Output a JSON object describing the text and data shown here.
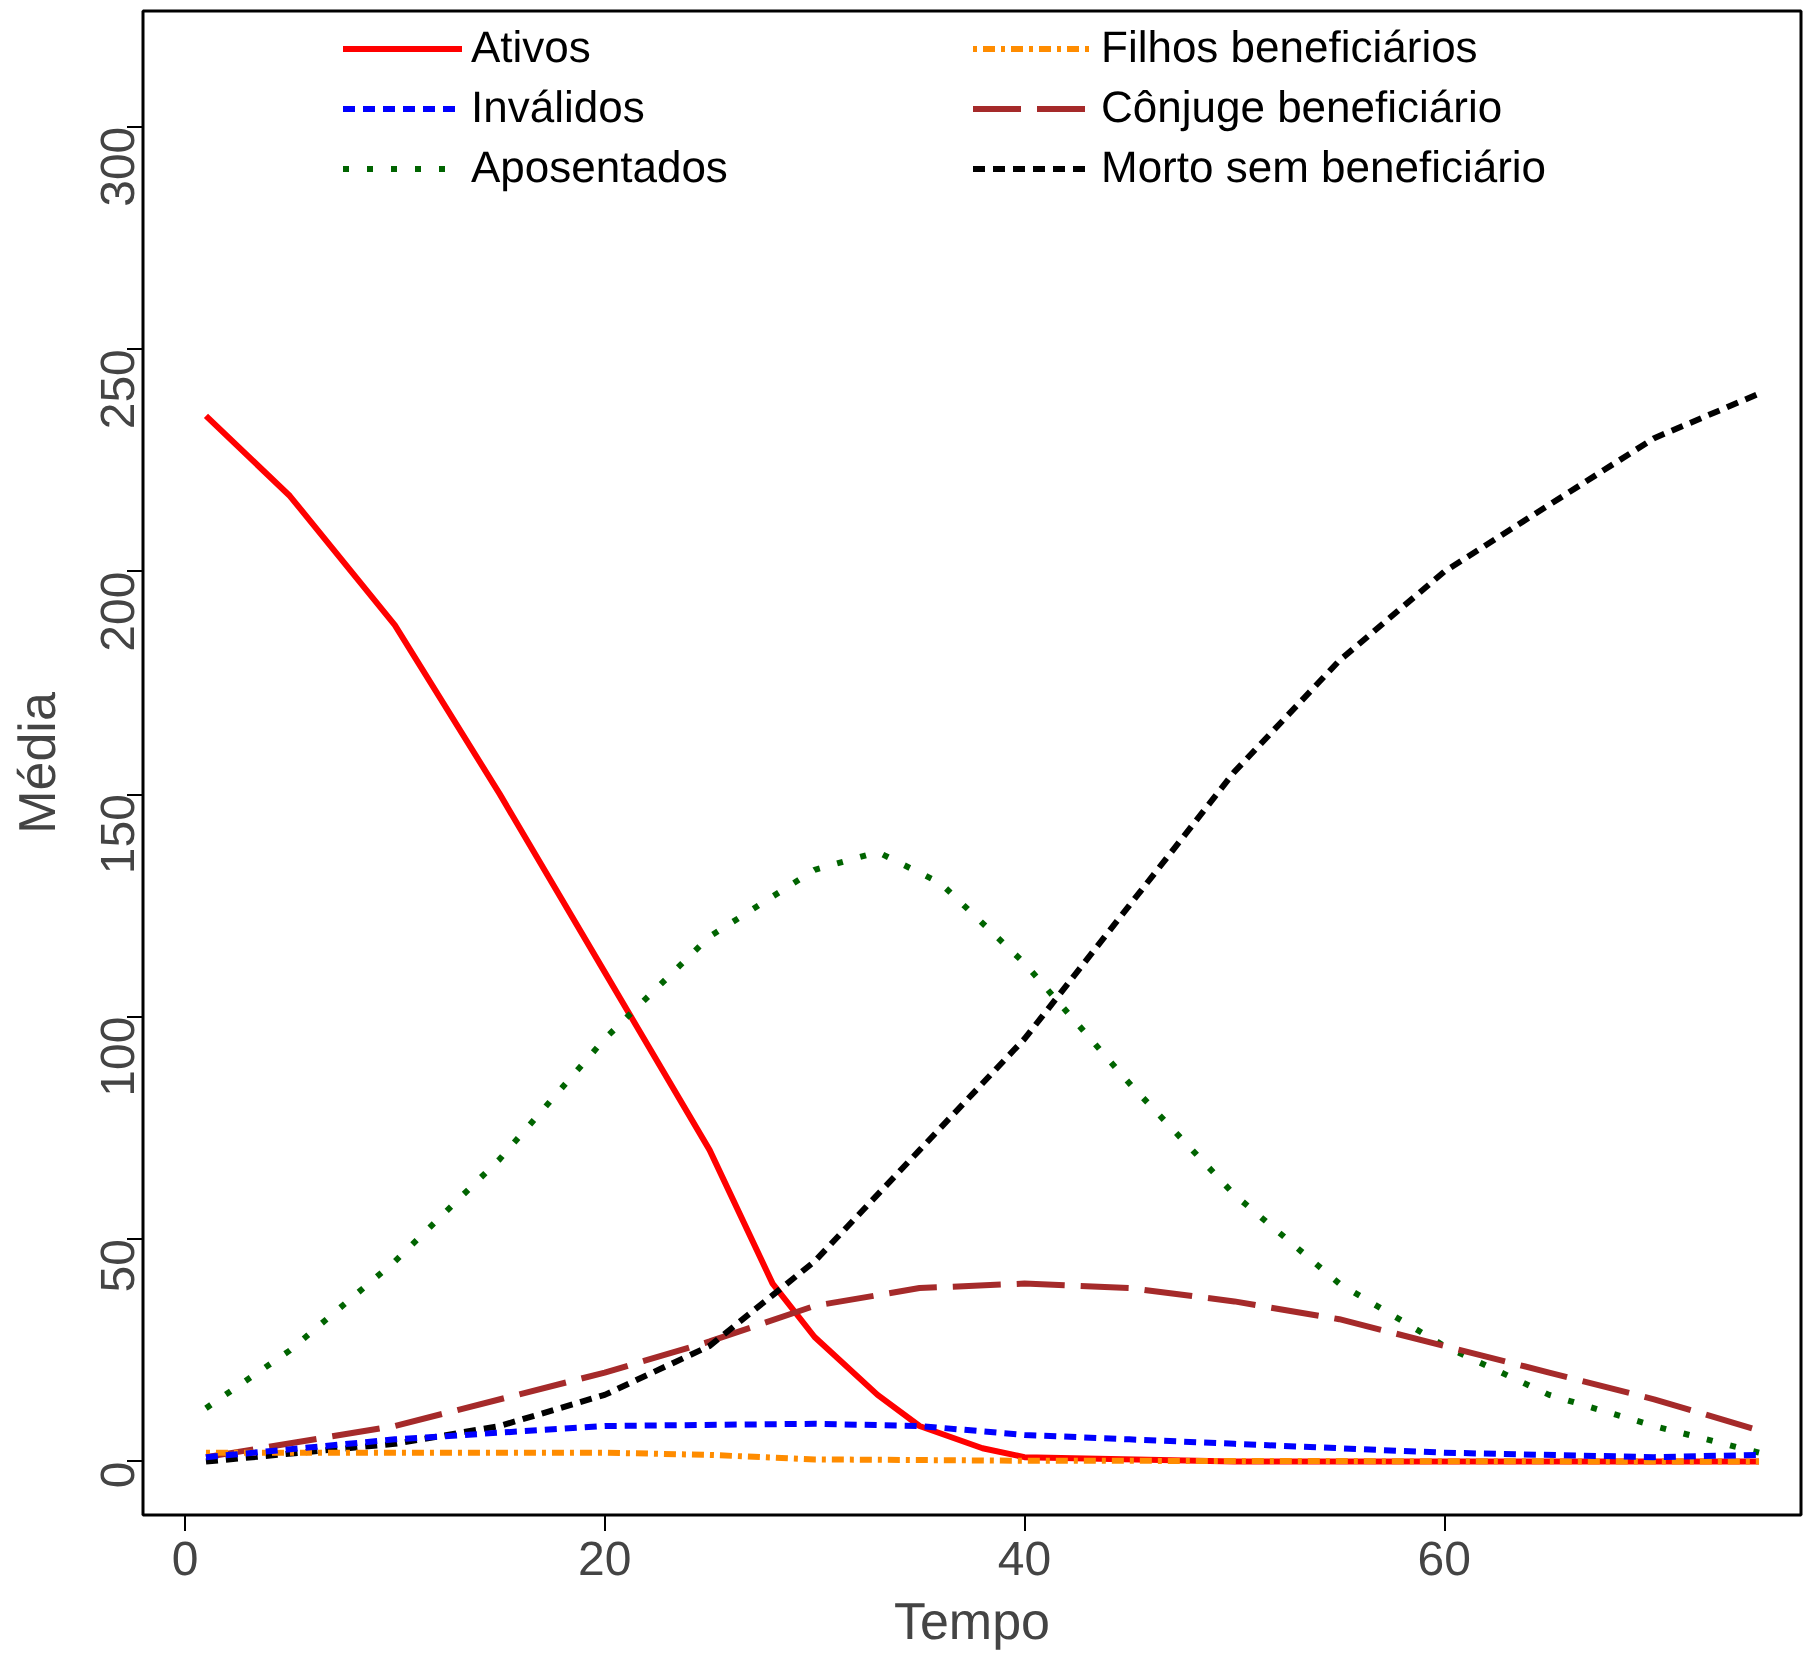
{
  "chart_data": {
    "type": "line",
    "xlabel": "Tempo",
    "ylabel": "Média",
    "xlim": [
      -2,
      77
    ],
    "ylim": [
      -12,
      326
    ],
    "xticks": [
      0,
      20,
      40,
      60
    ],
    "yticks": [
      0,
      50,
      100,
      150,
      200,
      250,
      300
    ],
    "grid": false,
    "legend": "top",
    "marker": "none",
    "series": [
      {
        "name": "Ativos",
        "color": "#ff0000",
        "line_style": "solid",
        "x": [
          1,
          5,
          10,
          15,
          20,
          25,
          28,
          30,
          33,
          35,
          38,
          40,
          50,
          60,
          75
        ],
        "values": [
          235,
          217,
          188,
          150,
          110,
          70,
          40,
          28,
          15,
          8,
          3,
          1,
          0,
          0,
          0
        ]
      },
      {
        "name": "Inválidos",
        "color": "#0000ff",
        "line_style": "dashed",
        "x": [
          1,
          10,
          20,
          30,
          35,
          40,
          45,
          50,
          60,
          70,
          75
        ],
        "values": [
          1,
          5,
          8,
          8.5,
          8,
          6,
          5,
          4,
          2,
          1,
          1.5
        ]
      },
      {
        "name": "Aposentados",
        "color": "#006400",
        "line_style": "dotted",
        "x": [
          1,
          5,
          10,
          15,
          20,
          25,
          30,
          33,
          36,
          40,
          45,
          50,
          55,
          60,
          65,
          70,
          75
        ],
        "values": [
          12,
          25,
          45,
          68,
          95,
          118,
          133,
          137,
          130,
          112,
          85,
          60,
          40,
          26,
          15,
          8,
          2
        ]
      },
      {
        "name": "Filhos beneficiários",
        "color": "#ff8c00",
        "line_style": "dashdot",
        "x": [
          1,
          10,
          20,
          25,
          30,
          40,
          75
        ],
        "values": [
          2,
          2,
          2,
          1.5,
          0.5,
          0.2,
          0
        ]
      },
      {
        "name": "Cônjuge beneficiário",
        "color": "#a52a2a",
        "line_style": "longdash",
        "x": [
          1,
          10,
          20,
          25,
          30,
          35,
          40,
          45,
          50,
          55,
          60,
          65,
          70,
          75
        ],
        "values": [
          1,
          8,
          20,
          27,
          35,
          39,
          40,
          39,
          36,
          32,
          26,
          20,
          14,
          7
        ]
      },
      {
        "name": "Morto sem beneficiário",
        "color": "#000000",
        "line_style": "dashed",
        "x": [
          1,
          10,
          15,
          20,
          25,
          30,
          35,
          40,
          45,
          50,
          55,
          60,
          65,
          70,
          75
        ],
        "values": [
          0,
          4,
          8,
          15,
          26,
          45,
          70,
          95,
          125,
          155,
          180,
          200,
          215,
          230,
          240
        ]
      }
    ]
  }
}
